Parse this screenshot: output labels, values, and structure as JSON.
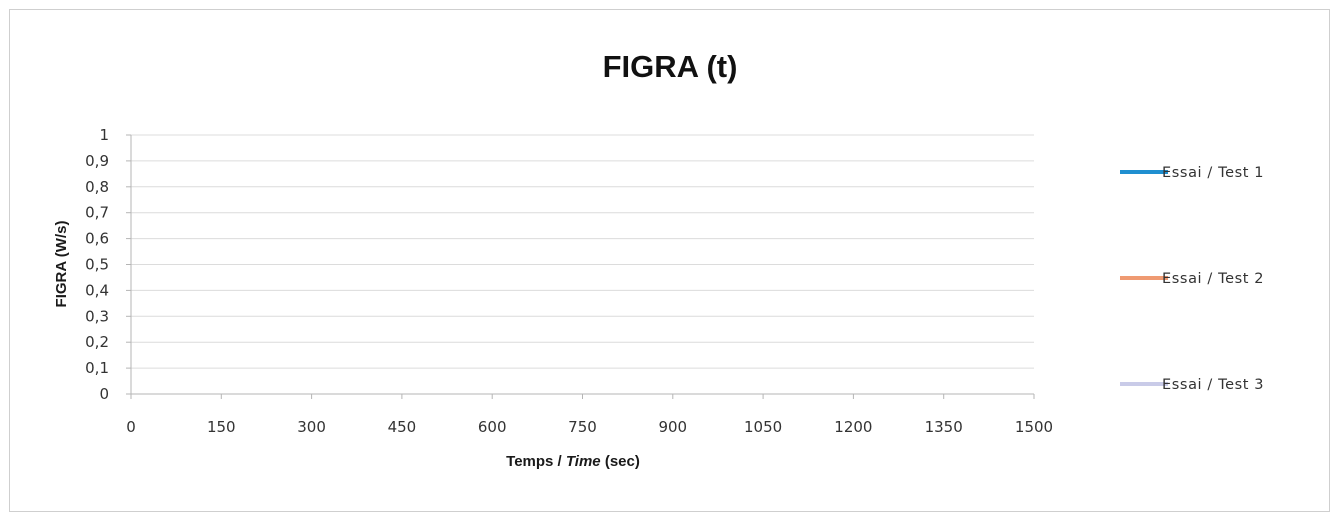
{
  "chart_data": {
    "type": "line",
    "title": "FIGRA (t)",
    "xlabel": {
      "prefix": "Temps / ",
      "italic": "Time",
      "suffix": " (sec)"
    },
    "ylabel": "FIGRA (W/s)",
    "xlim": [
      0,
      1500
    ],
    "ylim": [
      0,
      1
    ],
    "x_ticks": [
      "0",
      "150",
      "300",
      "450",
      "600",
      "750",
      "900",
      "1050",
      "1200",
      "1350",
      "1500"
    ],
    "y_ticks": [
      "0",
      "0,1",
      "0,2",
      "0,3",
      "0,4",
      "0,5",
      "0,6",
      "0,7",
      "0,8",
      "0,9",
      "1"
    ],
    "grid": true,
    "legend_position": "right",
    "series": [
      {
        "name": "Essai / Test 1",
        "color": "#1f8fd0",
        "x": [],
        "y": []
      },
      {
        "name": "Essai / Test 2",
        "color": "#ef9a72",
        "x": [],
        "y": []
      },
      {
        "name": "Essai / Test 3",
        "color": "#c9cbe8",
        "x": [],
        "y": []
      }
    ]
  }
}
